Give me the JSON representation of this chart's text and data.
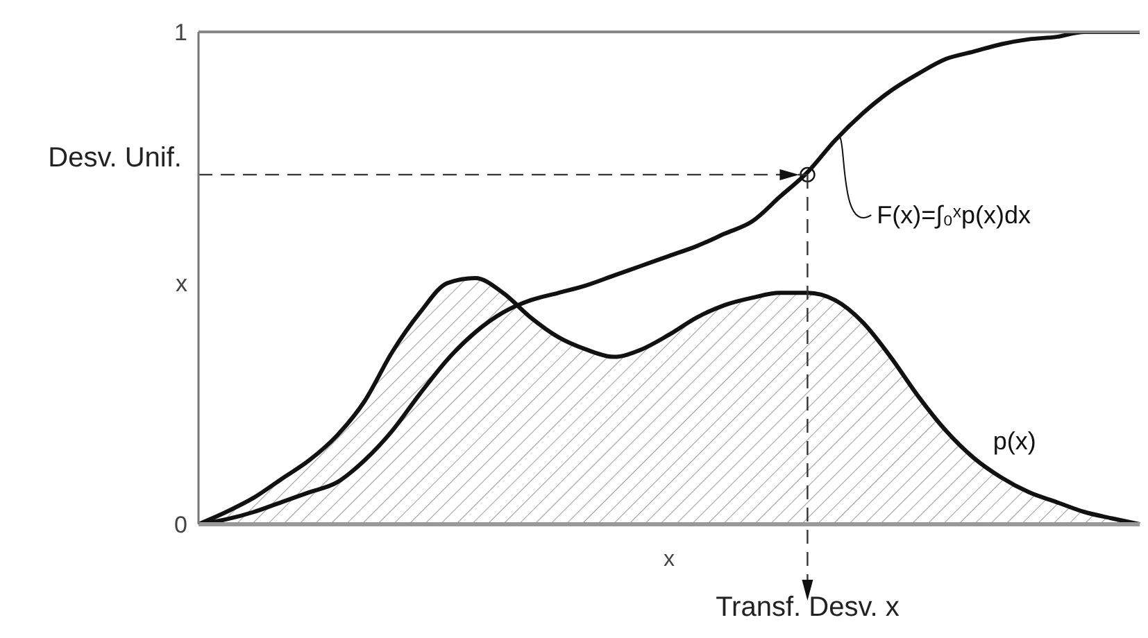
{
  "chart_data": {
    "type": "line",
    "xlabel": "x",
    "categories": [
      null,
      null,
      null,
      null,
      null,
      null,
      null,
      null,
      null,
      null,
      null,
      null,
      null,
      null,
      null,
      null,
      null,
      null,
      null,
      null,
      null,
      null,
      null,
      null,
      null,
      null,
      null,
      null,
      null,
      null,
      null,
      null,
      null,
      null,
      null
    ],
    "ylim": [
      0,
      1
    ],
    "yticks": [
      0,
      {
        "value": 0.49,
        "label": "x"
      },
      1
    ],
    "tick_labels": "y",
    "legend": false,
    "marker": "none",
    "line_style": "solid",
    "series": [
      {
        "name": "p(x)",
        "type": "area",
        "color": "#111111",
        "values": [
          0,
          0.025,
          0.054,
          0.092,
          0.13,
          0.18,
          0.25,
          0.35,
          0.43,
          0.49,
          0.5,
          0.47,
          0.42,
          0.38,
          0.355,
          0.34,
          0.355,
          0.385,
          0.42,
          0.445,
          0.46,
          0.47,
          0.47,
          0.455,
          0.41,
          0.34,
          0.26,
          0.19,
          0.135,
          0.095,
          0.065,
          0.045,
          0.025,
          0.012,
          0
        ]
      },
      {
        "name": "F(x)=∫₀ˣp(x)dx",
        "type": "line",
        "color": "#111111",
        "values": [
          0,
          0.01,
          0.025,
          0.045,
          0.065,
          0.085,
          0.13,
          0.19,
          0.265,
          0.335,
          0.39,
          0.43,
          0.455,
          0.47,
          0.485,
          0.505,
          0.525,
          0.545,
          0.565,
          0.59,
          0.615,
          0.665,
          0.715,
          0.78,
          0.835,
          0.88,
          0.915,
          0.945,
          0.96,
          0.975,
          0.985,
          0.99,
          1.0,
          1.0,
          1.0
        ]
      }
    ],
    "ref_lines": [
      {
        "axis": "y",
        "value": 0.71,
        "label": "Desv. Unif.",
        "line_style": "dashed"
      }
    ],
    "annotations": [
      "Transf. Desv. x"
    ]
  }
}
